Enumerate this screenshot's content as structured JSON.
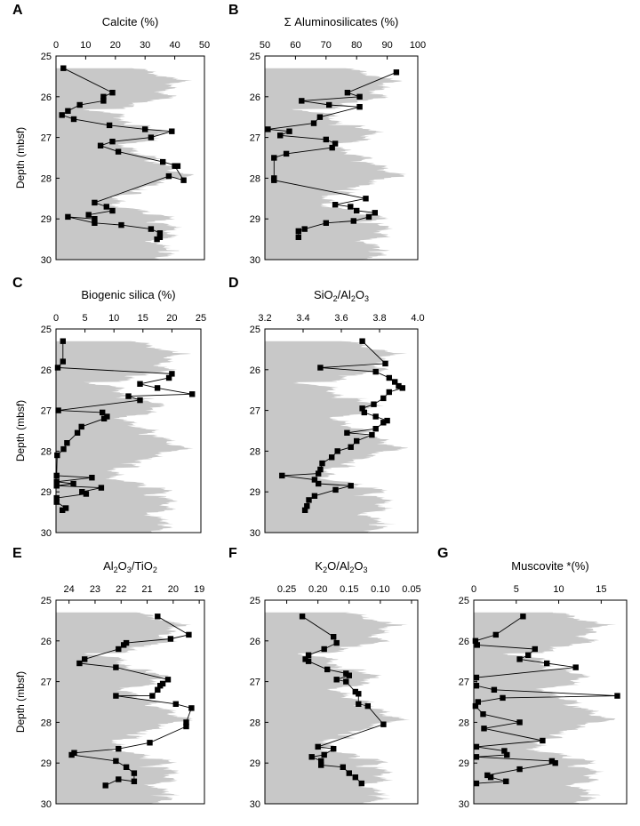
{
  "figure": {
    "shared_ylabel": "Depth (mbsf)",
    "depth_ticks": [
      "25",
      "26",
      "27",
      "28",
      "29",
      "30"
    ]
  },
  "colors": {
    "background_curve": "#c8c8c8",
    "markers": "#000000",
    "line": "#000000"
  },
  "chart_data": [
    {
      "type": "scatter",
      "panel": "A",
      "title": "Calcite (%)",
      "xlabel": "Calcite (%)",
      "ylabel": "Depth (mbsf)",
      "xlim": [
        0,
        50
      ],
      "ylim": [
        30,
        25
      ],
      "xticks": [
        "0",
        "10",
        "20",
        "30",
        "40",
        "50"
      ],
      "connected": true,
      "background_curve": true,
      "series": [
        {
          "x": [
            2.5,
            19,
            16,
            16,
            8,
            4,
            2,
            6,
            18,
            30,
            39,
            32,
            19,
            15,
            21,
            36,
            41,
            40,
            43,
            38,
            13,
            17,
            19,
            11,
            13,
            4,
            13,
            22,
            32,
            35,
            35,
            34
          ],
          "y": [
            25.3,
            25.9,
            26.0,
            26.1,
            26.2,
            26.35,
            26.45,
            26.55,
            26.7,
            26.8,
            26.85,
            27.0,
            27.1,
            27.2,
            27.35,
            27.6,
            27.7,
            27.7,
            28.05,
            27.95,
            28.6,
            28.7,
            28.8,
            28.9,
            29.0,
            28.95,
            29.1,
            29.15,
            29.25,
            29.35,
            29.45,
            29.5
          ]
        }
      ]
    },
    {
      "type": "scatter",
      "panel": "B",
      "title": "Σ Aluminosilicates (%)",
      "xlabel": "Σ Aluminosilicates (%)",
      "ylabel": "",
      "xlim": [
        50,
        100
      ],
      "ylim": [
        30,
        25
      ],
      "xticks": [
        "50",
        "60",
        "70",
        "80",
        "90",
        "100"
      ],
      "connected": true,
      "background_curve": true,
      "series": [
        {
          "x": [
            93,
            77,
            81,
            62,
            71,
            81,
            68,
            66,
            51,
            58,
            55,
            70,
            73,
            72,
            57,
            53,
            53,
            53,
            83,
            73,
            78,
            80,
            86,
            84,
            79,
            70,
            63,
            61,
            61
          ],
          "y": [
            25.4,
            25.9,
            26.0,
            26.1,
            26.2,
            26.25,
            26.5,
            26.65,
            26.8,
            26.85,
            26.95,
            27.05,
            27.15,
            27.25,
            27.4,
            27.5,
            28.0,
            28.05,
            28.5,
            28.65,
            28.7,
            28.8,
            28.85,
            28.95,
            29.05,
            29.1,
            29.25,
            29.3,
            29.45
          ]
        }
      ]
    },
    {
      "type": "scatter",
      "panel": "C",
      "title": "Biogenic silica (%)",
      "xlabel": "Biogenic silica (%)",
      "ylabel": "Depth (mbsf)",
      "xlim": [
        0,
        25
      ],
      "ylim": [
        30,
        25
      ],
      "xticks": [
        "0",
        "5",
        "10",
        "15",
        "20",
        "25"
      ],
      "connected": true,
      "background_curve": true,
      "series": [
        {
          "x": [
            1.2,
            1.2,
            0.3,
            20,
            19.5,
            14.5,
            17.5,
            23.5,
            12.5,
            14.5,
            0.4,
            8,
            8.8,
            8.3,
            4.4,
            3.7,
            1.9,
            1.3,
            0.2,
            0.1,
            6.2,
            0.1,
            3,
            0.1,
            7.8,
            4.5,
            5.2,
            0.1,
            0.1,
            1.7,
            1.1
          ],
          "y": [
            25.3,
            25.8,
            25.95,
            26.1,
            26.2,
            26.35,
            26.45,
            26.6,
            26.65,
            26.75,
            27.0,
            27.05,
            27.15,
            27.2,
            27.4,
            27.55,
            27.8,
            27.95,
            28.1,
            28.6,
            28.65,
            28.75,
            28.8,
            28.85,
            28.9,
            29.0,
            29.05,
            29.15,
            29.25,
            29.4,
            29.45
          ]
        }
      ]
    },
    {
      "type": "scatter",
      "panel": "D",
      "title": "SiO2/Al2O3",
      "xlabel": "SiO2/Al2O3",
      "ylabel": "",
      "xlim": [
        3.2,
        4.0
      ],
      "ylim": [
        30,
        25
      ],
      "xticks": [
        "3.2",
        "3.4",
        "3.6",
        "3.8",
        "4.0"
      ],
      "connected": true,
      "background_curve": true,
      "series": [
        {
          "x": [
            3.71,
            3.83,
            3.49,
            3.78,
            3.85,
            3.88,
            3.9,
            3.92,
            3.85,
            3.82,
            3.77,
            3.71,
            3.72,
            3.78,
            3.84,
            3.82,
            3.78,
            3.63,
            3.76,
            3.68,
            3.65,
            3.58,
            3.55,
            3.5,
            3.49,
            3.48,
            3.29,
            3.46,
            3.48,
            3.65,
            3.57,
            3.46,
            3.43,
            3.42,
            3.41
          ],
          "y": [
            25.3,
            25.85,
            25.95,
            26.05,
            26.2,
            26.3,
            26.4,
            26.45,
            26.55,
            26.7,
            26.85,
            26.95,
            27.05,
            27.15,
            27.25,
            27.3,
            27.45,
            27.55,
            27.6,
            27.75,
            27.9,
            28.0,
            28.15,
            28.3,
            28.45,
            28.55,
            28.6,
            28.7,
            28.8,
            28.85,
            28.95,
            29.1,
            29.2,
            29.35,
            29.45
          ]
        }
      ]
    },
    {
      "type": "scatter",
      "panel": "E",
      "title": "Al2O3/TiO2",
      "xlabel": "Al2O3/TiO2",
      "ylabel": "Depth (mbsf)",
      "xlim": [
        24.5,
        18.8
      ],
      "ylim": [
        30,
        25
      ],
      "xticks": [
        "24",
        "23",
        "22",
        "21",
        "20",
        "19"
      ],
      "connected": true,
      "background_curve": true,
      "series": [
        {
          "x": [
            20.6,
            19.4,
            20.1,
            21.8,
            21.9,
            22.1,
            23.4,
            23.6,
            22.2,
            20.2,
            20.4,
            20.5,
            20.6,
            20.8,
            22.2,
            19.9,
            19.3,
            19.5,
            19.5,
            20.9,
            22.1,
            23.8,
            23.9,
            22.2,
            21.8,
            21.5,
            21.5,
            22.1,
            22.6
          ],
          "y": [
            25.4,
            25.85,
            25.95,
            26.05,
            26.1,
            26.2,
            26.45,
            26.55,
            26.65,
            26.95,
            27.05,
            27.1,
            27.2,
            27.35,
            27.35,
            27.55,
            27.65,
            28.0,
            28.1,
            28.5,
            28.65,
            28.75,
            28.8,
            28.95,
            29.1,
            29.25,
            29.45,
            29.4,
            29.55
          ]
        }
      ]
    },
    {
      "type": "scatter",
      "panel": "F",
      "title": "K2O/Al2O3",
      "xlabel": "K2O/Al2O3",
      "ylabel": "",
      "xlim": [
        0.285,
        0.04
      ],
      "ylim": [
        30,
        25
      ],
      "xticks": [
        "0.25",
        "0.20",
        "0.15",
        "0.10",
        "0.05"
      ],
      "connected": true,
      "background_curve": true,
      "series": [
        {
          "x": [
            0.225,
            0.175,
            0.17,
            0.19,
            0.215,
            0.22,
            0.215,
            0.185,
            0.155,
            0.15,
            0.17,
            0.155,
            0.14,
            0.135,
            0.135,
            0.12,
            0.095,
            0.2,
            0.175,
            0.19,
            0.21,
            0.195,
            0.195,
            0.16,
            0.15,
            0.14,
            0.13
          ],
          "y": [
            25.4,
            25.9,
            26.05,
            26.2,
            26.35,
            26.45,
            26.5,
            26.7,
            26.8,
            26.85,
            26.95,
            27.0,
            27.25,
            27.3,
            27.55,
            27.6,
            28.05,
            28.6,
            28.65,
            28.8,
            28.85,
            28.95,
            29.05,
            29.1,
            29.25,
            29.35,
            29.5
          ]
        }
      ]
    },
    {
      "type": "scatter",
      "panel": "G",
      "title": "Muscovite *(%)",
      "xlabel": "Muscovite *(%)",
      "ylabel": "",
      "xlim": [
        0,
        18
      ],
      "ylim": [
        30,
        25
      ],
      "xticks": [
        "0",
        "5",
        "10",
        "15"
      ],
      "connected": true,
      "background_curve": true,
      "series": [
        {
          "x": [
            5.8,
            2.6,
            0.2,
            0.4,
            7.2,
            6.4,
            5.4,
            8.6,
            12.0,
            0.3,
            0.3,
            2.4,
            16.9,
            3.4,
            0.5,
            0.2,
            1.1,
            5.4,
            1.2,
            8.1,
            0.3,
            3.6,
            3.9,
            0.3,
            9.2,
            9.6,
            5.4,
            1.6,
            2.0,
            3.8,
            0.3
          ],
          "y": [
            25.4,
            25.85,
            26.0,
            26.1,
            26.2,
            26.35,
            26.45,
            26.55,
            26.65,
            26.9,
            27.1,
            27.2,
            27.35,
            27.4,
            27.5,
            27.6,
            27.8,
            28.0,
            28.15,
            28.45,
            28.6,
            28.7,
            28.8,
            28.85,
            28.95,
            29.0,
            29.15,
            29.3,
            29.35,
            29.45,
            29.5
          ]
        }
      ]
    }
  ]
}
